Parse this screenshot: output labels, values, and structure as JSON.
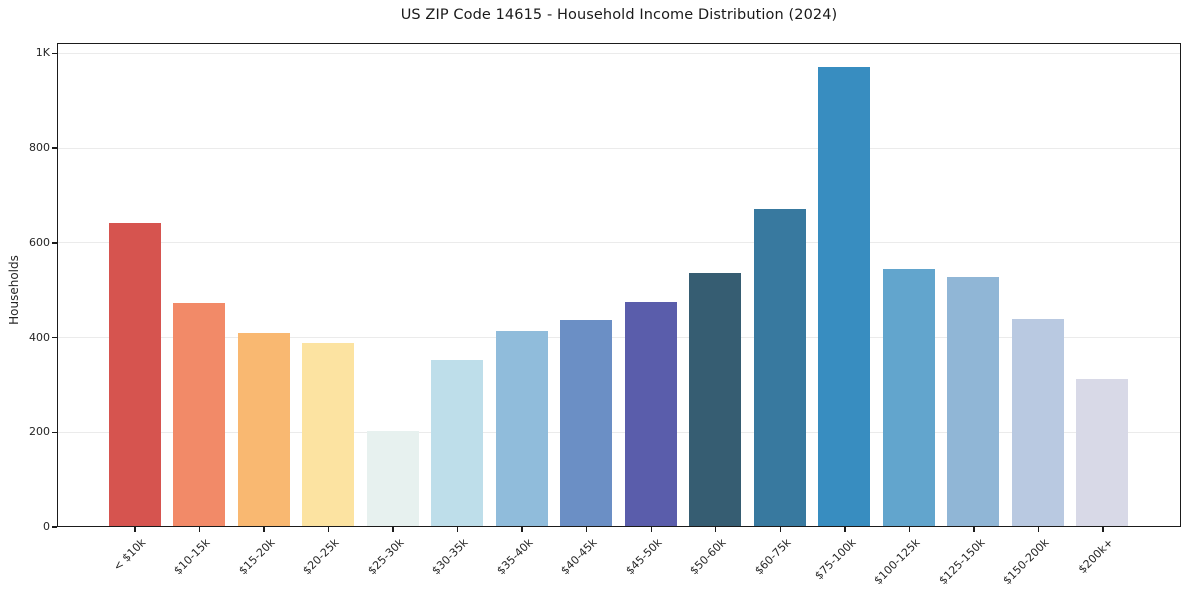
{
  "chart_data": {
    "type": "bar",
    "title": "US ZIP Code 14615 - Household Income Distribution (2024)",
    "xlabel": "",
    "ylabel": "Households",
    "categories": [
      "< $10k",
      "$10-15k",
      "$15-20k",
      "$20-25k",
      "$25-30k",
      "$30-35k",
      "$35-40k",
      "$40-45k",
      "$45-50k",
      "$50-60k",
      "$60-75k",
      "$75-100k",
      "$100-125k",
      "$125-150k",
      "$150-200k",
      "$200k+"
    ],
    "values": [
      640,
      471,
      408,
      386,
      200,
      350,
      412,
      434,
      474,
      535,
      670,
      970,
      543,
      525,
      438,
      311
    ],
    "bar_colors": [
      "#d6544f",
      "#f28a68",
      "#f9b871",
      "#fce3a1",
      "#e7f1ef",
      "#bedeea",
      "#90bcdb",
      "#6b8fc5",
      "#5a5dab",
      "#365d72",
      "#38799f",
      "#388dc0",
      "#62a5cd",
      "#90b6d6",
      "#b9c9e1",
      "#d8d9e7"
    ],
    "yticks": {
      "values": [
        0,
        200,
        400,
        600,
        800,
        1000
      ],
      "labels": [
        "0",
        "200",
        "400",
        "600",
        "800",
        "1K"
      ]
    },
    "ylim": [
      0,
      1022
    ],
    "grid": "horizontal",
    "legend": "none",
    "colors": {
      "background": "#ffffff",
      "spine": "#1b1b1b",
      "gridline": "#ebebeb",
      "text": "#262626"
    }
  }
}
